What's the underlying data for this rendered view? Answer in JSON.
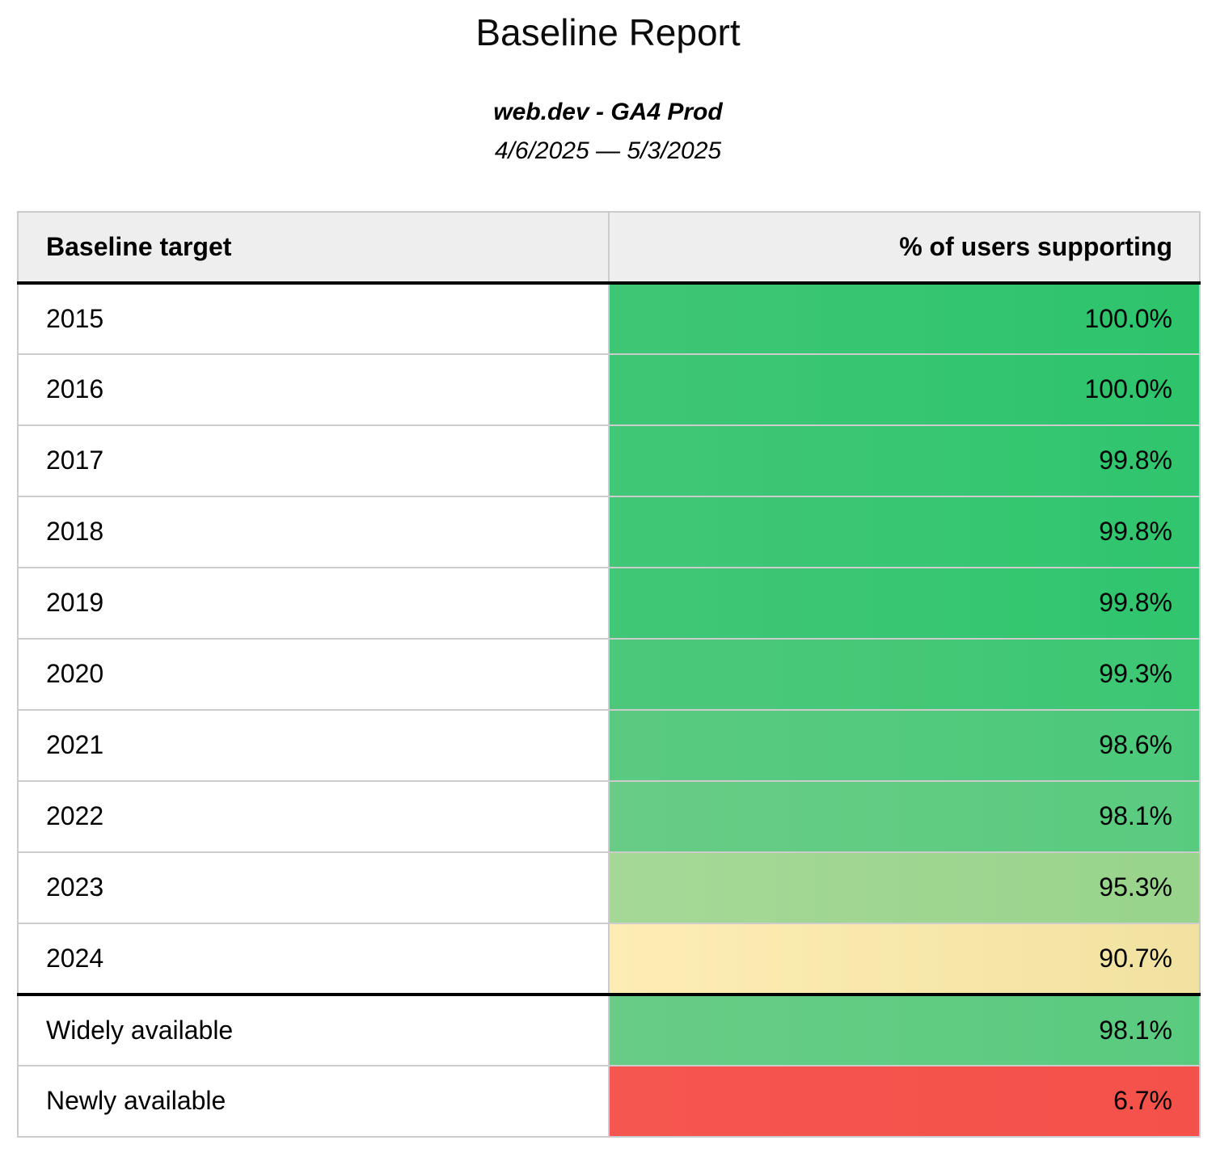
{
  "report": {
    "title": "Baseline Report",
    "subtitle": "web.dev - GA4 Prod",
    "date_range": "4/6/2025 — 5/3/2025"
  },
  "table": {
    "columns": [
      "Baseline target",
      "% of users supporting"
    ],
    "rows": [
      {
        "target": "2015",
        "value": "100.0%",
        "bg_left": "#3fc675",
        "bg_right": "#2dc46c",
        "section_end": false
      },
      {
        "target": "2016",
        "value": "100.0%",
        "bg_left": "#3fc675",
        "bg_right": "#2dc46c",
        "section_end": false
      },
      {
        "target": "2017",
        "value": "99.8%",
        "bg_left": "#41c776",
        "bg_right": "#30c56e",
        "section_end": false
      },
      {
        "target": "2018",
        "value": "99.8%",
        "bg_left": "#41c776",
        "bg_right": "#30c56e",
        "section_end": false
      },
      {
        "target": "2019",
        "value": "99.8%",
        "bg_left": "#41c776",
        "bg_right": "#30c56e",
        "section_end": false
      },
      {
        "target": "2020",
        "value": "99.3%",
        "bg_left": "#4cc87a",
        "bg_right": "#3cc773",
        "section_end": false
      },
      {
        "target": "2021",
        "value": "98.6%",
        "bg_left": "#5aca80",
        "bg_right": "#4bc97a",
        "section_end": false
      },
      {
        "target": "2022",
        "value": "98.1%",
        "bg_left": "#68cc86",
        "bg_right": "#59cb7f",
        "section_end": false
      },
      {
        "target": "2023",
        "value": "95.3%",
        "bg_left": "#a5d897",
        "bg_right": "#98d48b",
        "section_end": false
      },
      {
        "target": "2024",
        "value": "90.7%",
        "bg_left": "#fdedb4",
        "bg_right": "#f1e2a1",
        "section_end": true
      },
      {
        "target": "Widely available",
        "value": "98.1%",
        "bg_left": "#68cc86",
        "bg_right": "#59cb7f",
        "section_end": false
      },
      {
        "target": "Newly available",
        "value": "6.7%",
        "bg_left": "#f5564f",
        "bg_right": "#f4514a",
        "section_end": false
      }
    ]
  },
  "colors": {
    "header_background": "#eeeeee",
    "grid_border": "#cccccc",
    "section_divider": "#000000",
    "green_high": "#2dc46c",
    "yellow_mid": "#f5e6a8",
    "red_low": "#f5544d"
  },
  "chart_data": {
    "type": "table",
    "title": "Baseline Report",
    "subtitle": "web.dev - GA4 Prod",
    "date_range": "4/6/2025 — 5/3/2025",
    "columns": [
      "Baseline target",
      "% of users supporting"
    ],
    "rows": [
      [
        "2015",
        100.0
      ],
      [
        "2016",
        100.0
      ],
      [
        "2017",
        99.8
      ],
      [
        "2018",
        99.8
      ],
      [
        "2019",
        99.8
      ],
      [
        "2020",
        99.3
      ],
      [
        "2021",
        98.6
      ],
      [
        "2022",
        98.1
      ],
      [
        "2023",
        95.3
      ],
      [
        "2024",
        90.7
      ],
      [
        "Widely available",
        98.1
      ],
      [
        "Newly available",
        6.7
      ]
    ],
    "value_format": "percent",
    "color_coding": "value column heatmap: green (high) through yellow (~90) to red (low)",
    "sections": [
      {
        "name": "yearly-targets",
        "row_indices": [
          0,
          9
        ]
      },
      {
        "name": "availability",
        "row_indices": [
          10,
          11
        ]
      }
    ]
  }
}
